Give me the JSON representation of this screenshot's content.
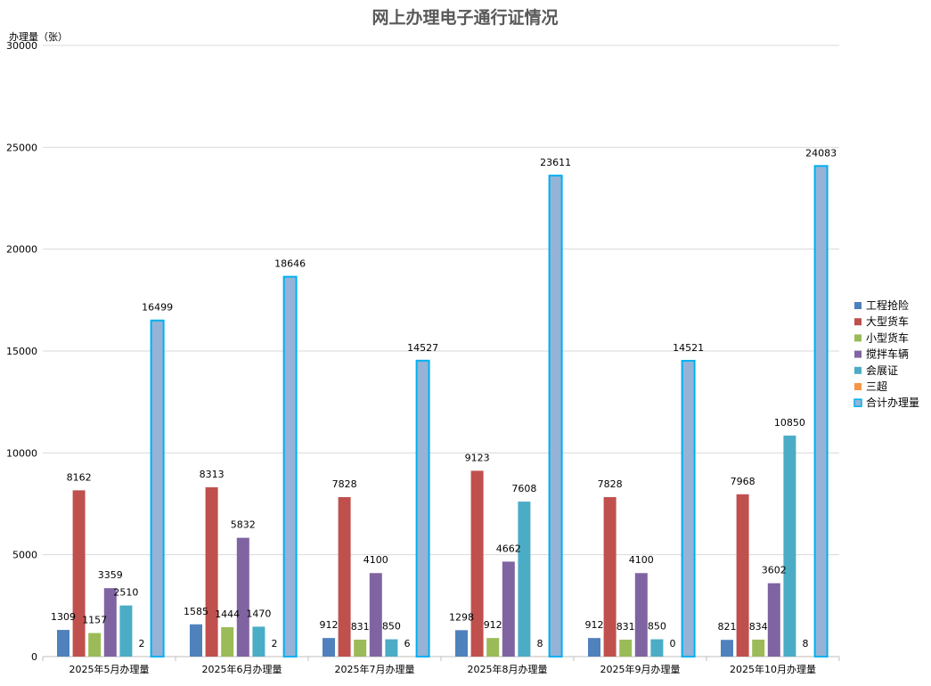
{
  "chart_data": {
    "type": "bar",
    "title": "网上办理电子通行证情况",
    "ylabel": "办理量（张）",
    "xlabel": "",
    "ylim": [
      0,
      30000
    ],
    "yticks": [
      0,
      5000,
      10000,
      15000,
      20000,
      25000,
      30000
    ],
    "grid": true,
    "legend_position": "right",
    "categories": [
      "2025年5月办理量",
      "2025年6月办理量",
      "2025年7月办理量",
      "2025年8月办理量",
      "2025年9月办理量",
      "2025年10月办理量"
    ],
    "series": [
      {
        "name": "工程抢险",
        "color": "#4F81BD",
        "values": [
          1309,
          1585,
          912,
          1298,
          912,
          821
        ],
        "labels": [
          "1309",
          "1585",
          "912",
          "1298",
          "912",
          "821"
        ]
      },
      {
        "name": "大型货车",
        "color": "#C0504D",
        "values": [
          8162,
          8313,
          7828,
          9123,
          7828,
          7968
        ],
        "labels": [
          "8162",
          "8313",
          "7828",
          "9123",
          "7828",
          "7968"
        ]
      },
      {
        "name": "小型货车",
        "color": "#9BBB59",
        "values": [
          1157,
          1444,
          831,
          912,
          831,
          834
        ],
        "labels": [
          "1157",
          "1444",
          "831",
          "912",
          "831",
          "834"
        ]
      },
      {
        "name": "搅拌车辆",
        "color": "#8064A2",
        "values": [
          3359,
          5832,
          4100,
          4662,
          4100,
          3602
        ],
        "labels": [
          "3359",
          "5832",
          "4100",
          "4662",
          "4100",
          "3602"
        ]
      },
      {
        "name": "会展证",
        "color": "#4BACC6",
        "values": [
          2510,
          1470,
          850,
          7608,
          850,
          10850
        ],
        "labels": [
          "2510",
          "1470",
          "850",
          "7608",
          "850",
          "10850"
        ]
      },
      {
        "name": "三超",
        "color": "#F79646",
        "values": [
          2,
          2,
          6,
          8,
          0,
          8
        ],
        "labels": [
          "2",
          "2",
          "6",
          "8",
          "0",
          "8"
        ]
      },
      {
        "name": "合计办理量",
        "color": "#95B3D7",
        "border": "#00B0F0",
        "values": [
          16499,
          18646,
          14527,
          23611,
          14521,
          24083
        ],
        "labels": [
          "16499",
          "18646",
          "14527",
          "23611",
          "14521",
          "24083"
        ]
      }
    ]
  }
}
